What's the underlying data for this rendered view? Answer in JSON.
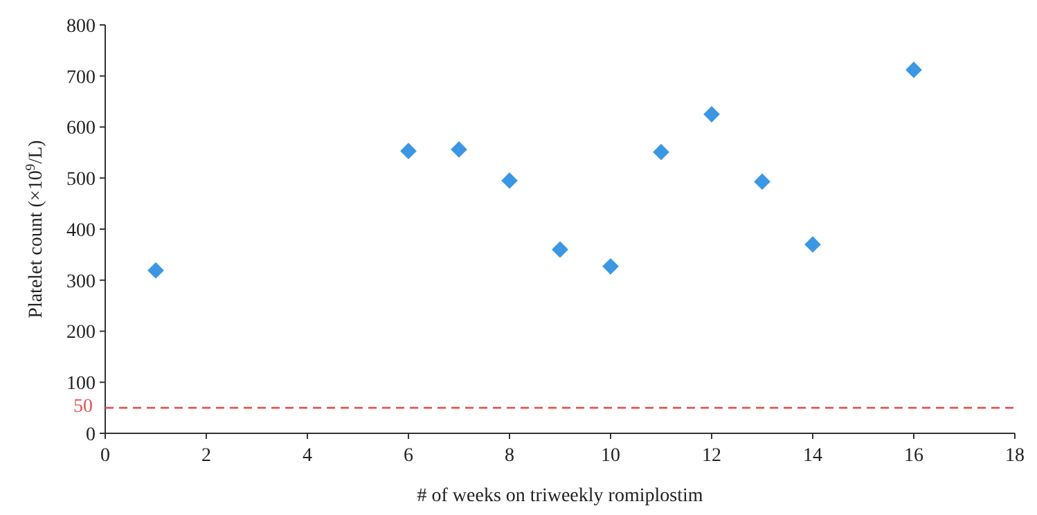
{
  "chart_data": {
    "type": "scatter",
    "xlabel": "# of weeks on triweekly romiplostim",
    "ylabel": "Platelet count (×10$^{9}$/L)",
    "x": [
      1,
      6,
      7,
      8,
      9,
      10,
      11,
      12,
      13,
      14,
      16
    ],
    "series": [
      {
        "color": "#3b97e3",
        "values": [
          319,
          553,
          556,
          495,
          360,
          327,
          551,
          625,
          493,
          370,
          712
        ]
      }
    ],
    "marker": "diamond",
    "xlim": [
      0,
      18
    ],
    "xticks": [
      0,
      2,
      4,
      6,
      8,
      10,
      12,
      14,
      16,
      18
    ],
    "ylim": [
      0,
      800
    ],
    "yticks": [
      0,
      100,
      200,
      300,
      400,
      500,
      600,
      700,
      800
    ],
    "ref_lines": [
      {
        "axis": "y",
        "value": 50,
        "label": "50",
        "color": "#e05555",
        "line_style": "dashed"
      }
    ],
    "grid": false
  }
}
